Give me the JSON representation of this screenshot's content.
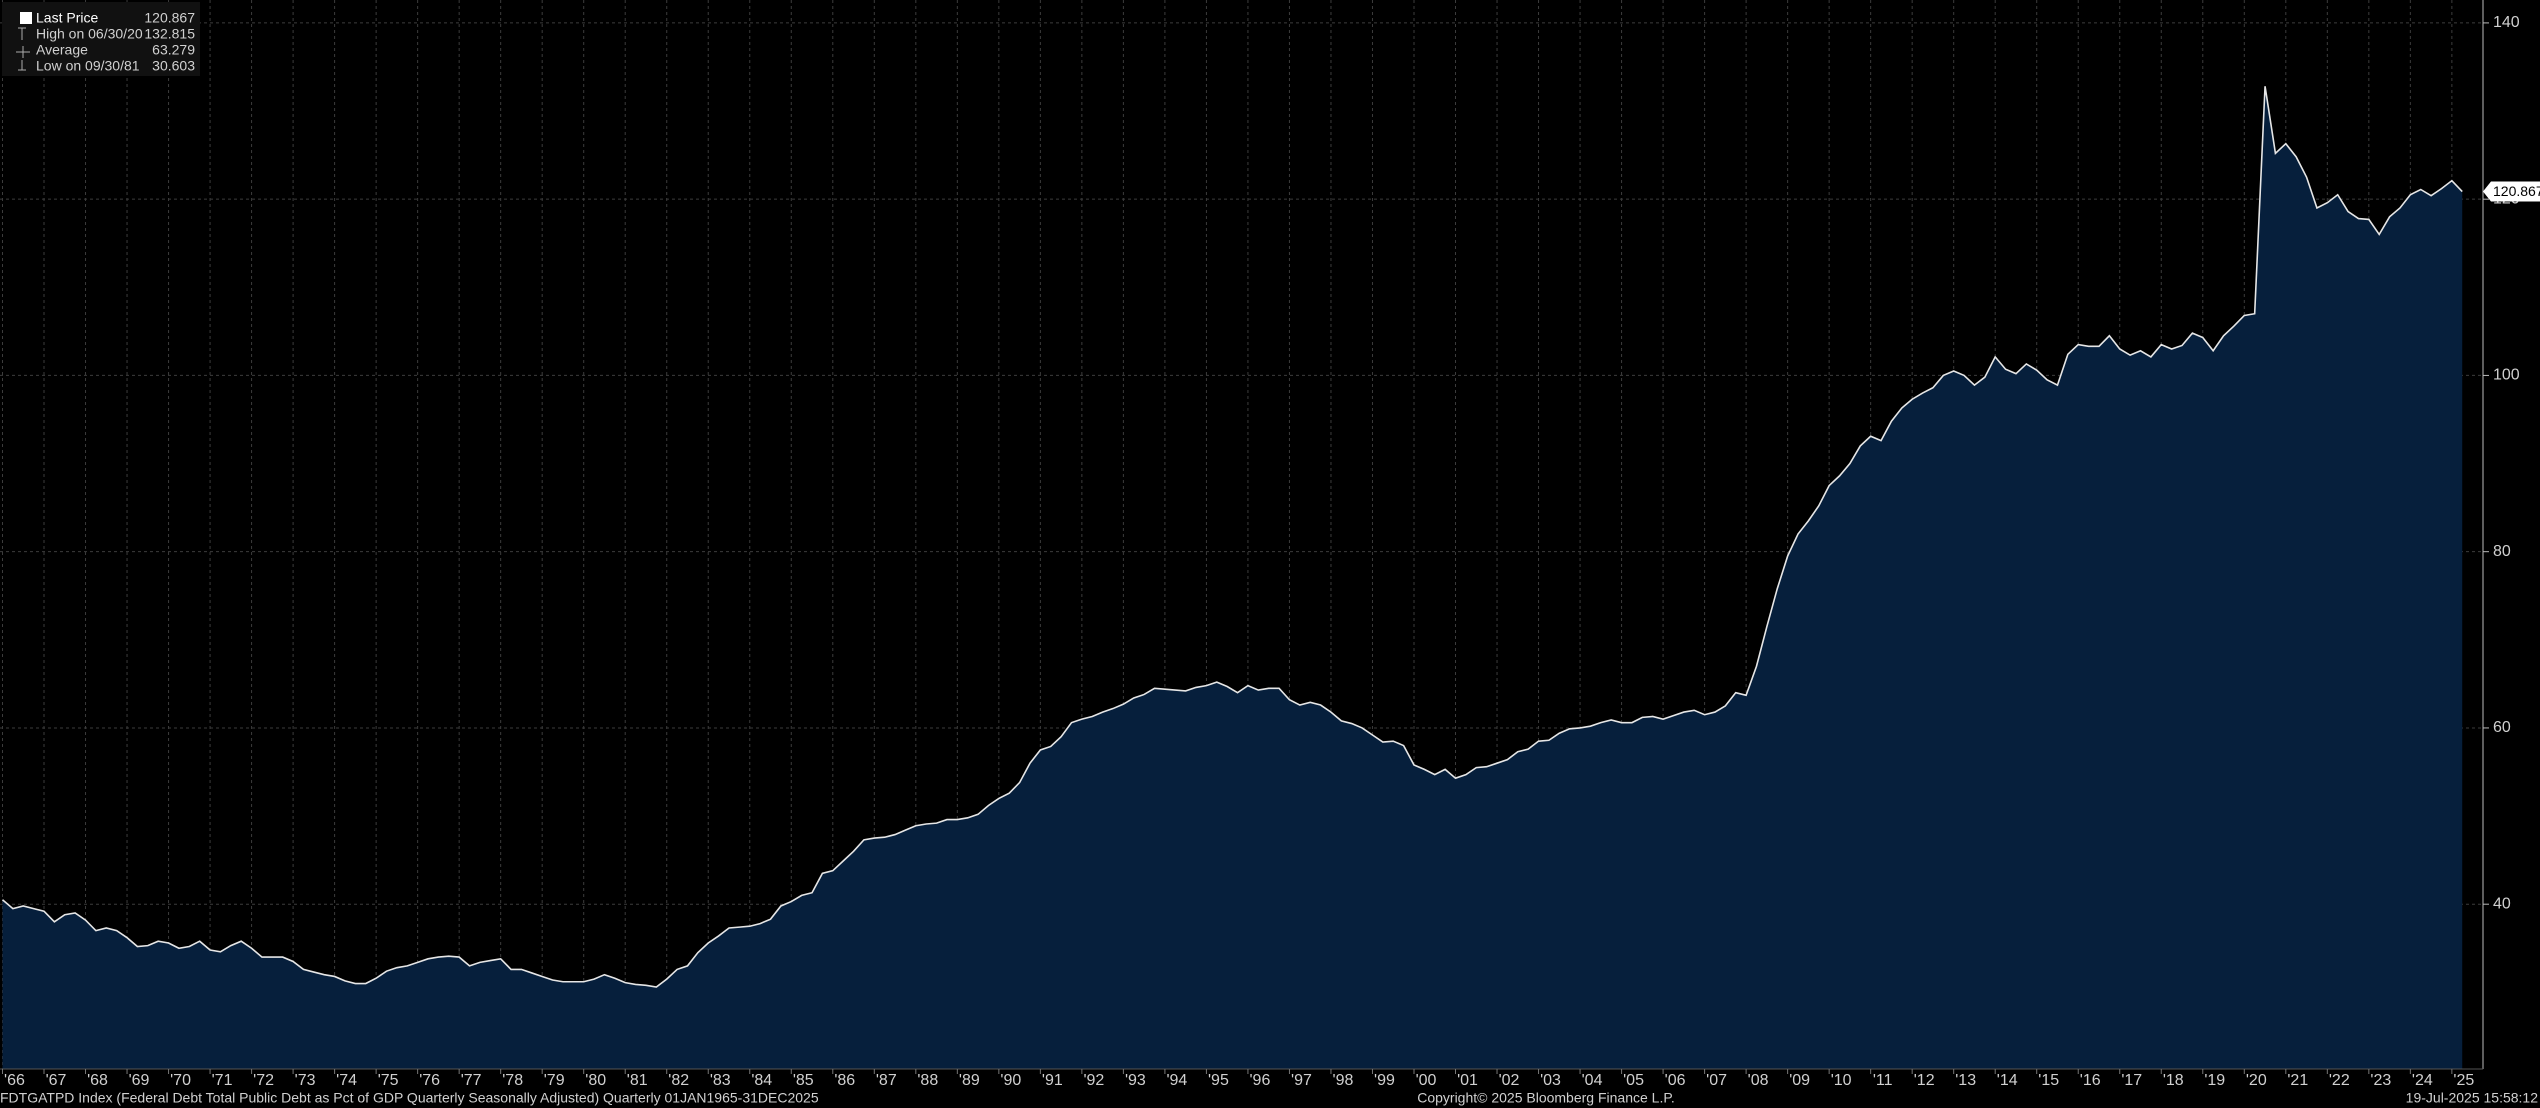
{
  "chart_data": {
    "type": "area",
    "legend": [
      {
        "label": "Last Price",
        "value": 120.867
      },
      {
        "label": "High on 06/30/20",
        "value": 132.815
      },
      {
        "label": "Average",
        "value": 63.279
      },
      {
        "label": "Low on 09/30/81",
        "value": 30.603
      }
    ],
    "footer_left": "FDTGATPD Index (Federal Debt Total Public Debt as Pct of GDP Quarterly Seasonally Adjusted)  Quarterly 01JAN1965-31DEC2025",
    "footer_center": "Copyright© 2025 Bloomberg Finance L.P.",
    "footer_right": "19-Jul-2025 15:58:12",
    "line_color": "#e6e6e6",
    "fill_color": "#061f3c",
    "grid": true,
    "x": [
      1966,
      1966.25,
      1966.5,
      1966.75,
      1967,
      1967.25,
      1967.5,
      1967.75,
      1968,
      1968.25,
      1968.5,
      1968.75,
      1969,
      1969.25,
      1969.5,
      1969.75,
      1970,
      1970.25,
      1970.5,
      1970.75,
      1971,
      1971.25,
      1971.5,
      1971.75,
      1972,
      1972.25,
      1972.5,
      1972.75,
      1973,
      1973.25,
      1973.5,
      1973.75,
      1974,
      1974.25,
      1974.5,
      1974.75,
      1975,
      1975.25,
      1975.5,
      1975.75,
      1976,
      1976.25,
      1976.5,
      1976.75,
      1977,
      1977.25,
      1977.5,
      1977.75,
      1978,
      1978.25,
      1978.5,
      1978.75,
      1979,
      1979.25,
      1979.5,
      1979.75,
      1980,
      1980.25,
      1980.5,
      1980.75,
      1981,
      1981.25,
      1981.5,
      1981.75,
      1982,
      1982.25,
      1982.5,
      1982.75,
      1983,
      1983.25,
      1983.5,
      1983.75,
      1984,
      1984.25,
      1984.5,
      1984.75,
      1985,
      1985.25,
      1985.5,
      1985.75,
      1986,
      1986.25,
      1986.5,
      1986.75,
      1987,
      1987.25,
      1987.5,
      1987.75,
      1988,
      1988.25,
      1988.5,
      1988.75,
      1989,
      1989.25,
      1989.5,
      1989.75,
      1990,
      1990.25,
      1990.5,
      1990.75,
      1991,
      1991.25,
      1991.5,
      1991.75,
      1992,
      1992.25,
      1992.5,
      1992.75,
      1993,
      1993.25,
      1993.5,
      1993.75,
      1994,
      1994.25,
      1994.5,
      1994.75,
      1995,
      1995.25,
      1995.5,
      1995.75,
      1996,
      1996.25,
      1996.5,
      1996.75,
      1997,
      1997.25,
      1997.5,
      1997.75,
      1998,
      1998.25,
      1998.5,
      1998.75,
      1999,
      1999.25,
      1999.5,
      1999.75,
      2000,
      2000.25,
      2000.5,
      2000.75,
      2001,
      2001.25,
      2001.5,
      2001.75,
      2002,
      2002.25,
      2002.5,
      2002.75,
      2003,
      2003.25,
      2003.5,
      2003.75,
      2004,
      2004.25,
      2004.5,
      2004.75,
      2005,
      2005.25,
      2005.5,
      2005.75,
      2006,
      2006.25,
      2006.5,
      2006.75,
      2007,
      2007.25,
      2007.5,
      2007.75,
      2008,
      2008.25,
      2008.5,
      2008.75,
      2009,
      2009.25,
      2009.5,
      2009.75,
      2010,
      2010.25,
      2010.5,
      2010.75,
      2011,
      2011.25,
      2011.5,
      2011.75,
      2012,
      2012.25,
      2012.5,
      2012.75,
      2013,
      2013.25,
      2013.5,
      2013.75,
      2014,
      2014.25,
      2014.5,
      2014.75,
      2015,
      2015.25,
      2015.5,
      2015.75,
      2016,
      2016.25,
      2016.5,
      2016.75,
      2017,
      2017.25,
      2017.5,
      2017.75,
      2018,
      2018.25,
      2018.5,
      2018.75,
      2019,
      2019.25,
      2019.5,
      2019.75,
      2020,
      2020.25,
      2020.5,
      2020.75,
      2021,
      2021.25,
      2021.5,
      2021.75,
      2022,
      2022.25,
      2022.5,
      2022.75,
      2023,
      2023.25,
      2023.5,
      2023.75,
      2024,
      2024.25,
      2024.5,
      2024.75,
      2025,
      2025.25
    ],
    "values": [
      40.5,
      39.5,
      39.8,
      39.5,
      39.2,
      38,
      38.8,
      39,
      38.2,
      37,
      37.3,
      37,
      36.2,
      35.2,
      35.3,
      35.8,
      35.6,
      35,
      35.2,
      35.8,
      34.8,
      34.6,
      35.3,
      35.8,
      35,
      34,
      34,
      34,
      33.5,
      32.6,
      32.3,
      32,
      31.8,
      31.3,
      31,
      31,
      31.6,
      32.4,
      32.8,
      33,
      33.4,
      33.8,
      34,
      34.1,
      34,
      33,
      33.4,
      33.6,
      33.8,
      32.6,
      32.6,
      32.2,
      31.8,
      31.4,
      31.2,
      31.2,
      31.2,
      31.5,
      32,
      31.6,
      31.1,
      30.9,
      30.8,
      30.603,
      31.5,
      32.6,
      33,
      34.5,
      35.6,
      36.4,
      37.3,
      37.4,
      37.5,
      37.8,
      38.3,
      39.8,
      40.3,
      41,
      41.3,
      43.5,
      43.8,
      44.9,
      46,
      47.3,
      47.5,
      47.6,
      47.9,
      48.4,
      48.9,
      49.1,
      49.2,
      49.6,
      49.6,
      49.8,
      50.2,
      51.2,
      52,
      52.6,
      53.8,
      56,
      57.5,
      57.9,
      59,
      60.6,
      61,
      61.3,
      61.8,
      62.2,
      62.7,
      63.4,
      63.8,
      64.5,
      64.4,
      64.3,
      64.2,
      64.6,
      64.8,
      65.2,
      64.7,
      64,
      64.8,
      64.3,
      64.5,
      64.5,
      63.2,
      62.6,
      62.9,
      62.6,
      61.8,
      60.8,
      60.5,
      60,
      59.2,
      58.4,
      58.5,
      58,
      55.8,
      55.3,
      54.7,
      55.3,
      54.3,
      54.7,
      55.5,
      55.6,
      56,
      56.4,
      57.3,
      57.6,
      58.5,
      58.6,
      59.4,
      59.9,
      60,
      60.2,
      60.6,
      60.9,
      60.6,
      60.6,
      61.2,
      61.3,
      61,
      61.4,
      61.8,
      62,
      61.5,
      61.8,
      62.5,
      64,
      63.7,
      67,
      71.5,
      75.8,
      79.5,
      82,
      83.5,
      85.2,
      87.5,
      88.6,
      90,
      92,
      93.1,
      92.6,
      94.8,
      96.3,
      97.3,
      98,
      98.6,
      100,
      100.5,
      100,
      98.9,
      99.8,
      102.1,
      100.7,
      100.2,
      101.3,
      100.6,
      99.5,
      98.9,
      102.4,
      103.5,
      103.3,
      103.3,
      104.5,
      103,
      102.3,
      102.8,
      102.1,
      103.5,
      103,
      103.4,
      104.8,
      104.3,
      102.8,
      104.5,
      105.6,
      106.8,
      107,
      132.815,
      125.2,
      126.3,
      124.8,
      122.5,
      119,
      119.6,
      120.5,
      118.6,
      117.8,
      117.7,
      116,
      118,
      119,
      120.5,
      121.1,
      120.4,
      121.2,
      122.1,
      120.867
    ],
    "xlim": [
      1965.94,
      2025.75
    ],
    "ylim": [
      21.3,
      142.6
    ],
    "yticks": [
      40,
      60,
      80,
      100,
      120,
      140
    ],
    "xticks": [
      {
        "value": 1966,
        "label": "'66"
      },
      {
        "value": 1967,
        "label": "'67"
      },
      {
        "value": 1968,
        "label": "'68"
      },
      {
        "value": 1969,
        "label": "'69"
      },
      {
        "value": 1970,
        "label": "'70"
      },
      {
        "value": 1971,
        "label": "'71"
      },
      {
        "value": 1972,
        "label": "'72"
      },
      {
        "value": 1973,
        "label": "'73"
      },
      {
        "value": 1974,
        "label": "'74"
      },
      {
        "value": 1975,
        "label": "'75"
      },
      {
        "value": 1976,
        "label": "'76"
      },
      {
        "value": 1977,
        "label": "'77"
      },
      {
        "value": 1978,
        "label": "'78"
      },
      {
        "value": 1979,
        "label": "'79"
      },
      {
        "value": 1980,
        "label": "'80"
      },
      {
        "value": 1981,
        "label": "'81"
      },
      {
        "value": 1982,
        "label": "'82"
      },
      {
        "value": 1983,
        "label": "'83"
      },
      {
        "value": 1984,
        "label": "'84"
      },
      {
        "value": 1985,
        "label": "'85"
      },
      {
        "value": 1986,
        "label": "'86"
      },
      {
        "value": 1987,
        "label": "'87"
      },
      {
        "value": 1988,
        "label": "'88"
      },
      {
        "value": 1989,
        "label": "'89"
      },
      {
        "value": 1990,
        "label": "'90"
      },
      {
        "value": 1991,
        "label": "'91"
      },
      {
        "value": 1992,
        "label": "'92"
      },
      {
        "value": 1993,
        "label": "'93"
      },
      {
        "value": 1994,
        "label": "'94"
      },
      {
        "value": 1995,
        "label": "'95"
      },
      {
        "value": 1996,
        "label": "'96"
      },
      {
        "value": 1997,
        "label": "'97"
      },
      {
        "value": 1998,
        "label": "'98"
      },
      {
        "value": 1999,
        "label": "'99"
      },
      {
        "value": 2000,
        "label": "'00"
      },
      {
        "value": 2001,
        "label": "'01"
      },
      {
        "value": 2002,
        "label": "'02"
      },
      {
        "value": 2003,
        "label": "'03"
      },
      {
        "value": 2004,
        "label": "'04"
      },
      {
        "value": 2005,
        "label": "'05"
      },
      {
        "value": 2006,
        "label": "'06"
      },
      {
        "value": 2007,
        "label": "'07"
      },
      {
        "value": 2008,
        "label": "'08"
      },
      {
        "value": 2009,
        "label": "'09"
      },
      {
        "value": 2010,
        "label": "'10"
      },
      {
        "value": 2011,
        "label": "'11"
      },
      {
        "value": 2012,
        "label": "'12"
      },
      {
        "value": 2013,
        "label": "'13"
      },
      {
        "value": 2014,
        "label": "'14"
      },
      {
        "value": 2015,
        "label": "'15"
      },
      {
        "value": 2016,
        "label": "'16"
      },
      {
        "value": 2017,
        "label": "'17"
      },
      {
        "value": 2018,
        "label": "'18"
      },
      {
        "value": 2019,
        "label": "'19"
      },
      {
        "value": 2020,
        "label": "'20"
      },
      {
        "value": 2021,
        "label": "'21"
      },
      {
        "value": 2022,
        "label": "'22"
      },
      {
        "value": 2023,
        "label": "'23"
      },
      {
        "value": 2024,
        "label": "'24"
      },
      {
        "value": 2025,
        "label": "'25"
      }
    ]
  }
}
